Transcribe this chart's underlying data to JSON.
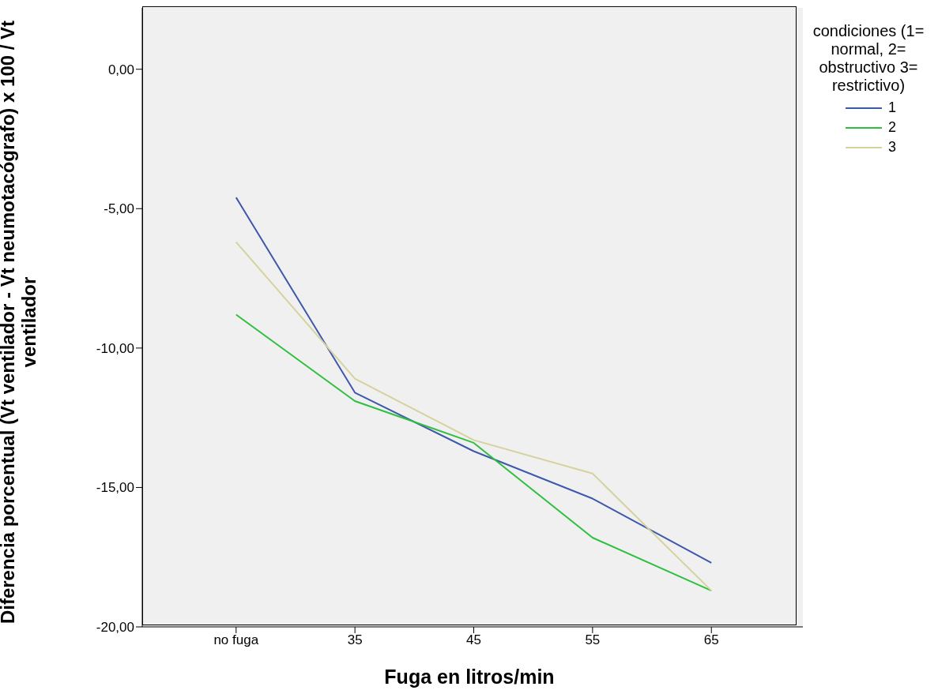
{
  "chart_data": {
    "type": "line",
    "xlabel": "Fuga en litros/min",
    "ylabel": "Diferencia porcentual (Vt ventilador - Vt neumotacógrafo) x 100 / Vt ventilador",
    "legend_title": "condiciones (1= normal, 2= obstructivo 3= restrictivo)",
    "categories": [
      "no fuga",
      "35",
      "45",
      "55",
      "65"
    ],
    "series": [
      {
        "name": "1",
        "color": "#3e58ac",
        "values": [
          -4.6,
          -11.6,
          -13.7,
          -15.4,
          -17.7
        ]
      },
      {
        "name": "2",
        "color": "#2fbf3f",
        "values": [
          -8.8,
          -11.9,
          -13.4,
          -16.8,
          -18.7
        ]
      },
      {
        "name": "3",
        "color": "#d5d29d",
        "values": [
          -6.2,
          -11.1,
          -13.3,
          -14.5,
          -18.7
        ]
      }
    ],
    "ylim": [
      -20,
      2.2
    ],
    "yticks": [
      {
        "value": -20,
        "label": "-20,00"
      },
      {
        "value": -15,
        "label": "-15,00"
      },
      {
        "value": -10,
        "label": "-10,00"
      },
      {
        "value": -5,
        "label": "-5,00"
      },
      {
        "value": 0,
        "label": "0,00"
      }
    ],
    "grid": false,
    "legend": "top right",
    "marker": "none",
    "line_style": "solid"
  }
}
